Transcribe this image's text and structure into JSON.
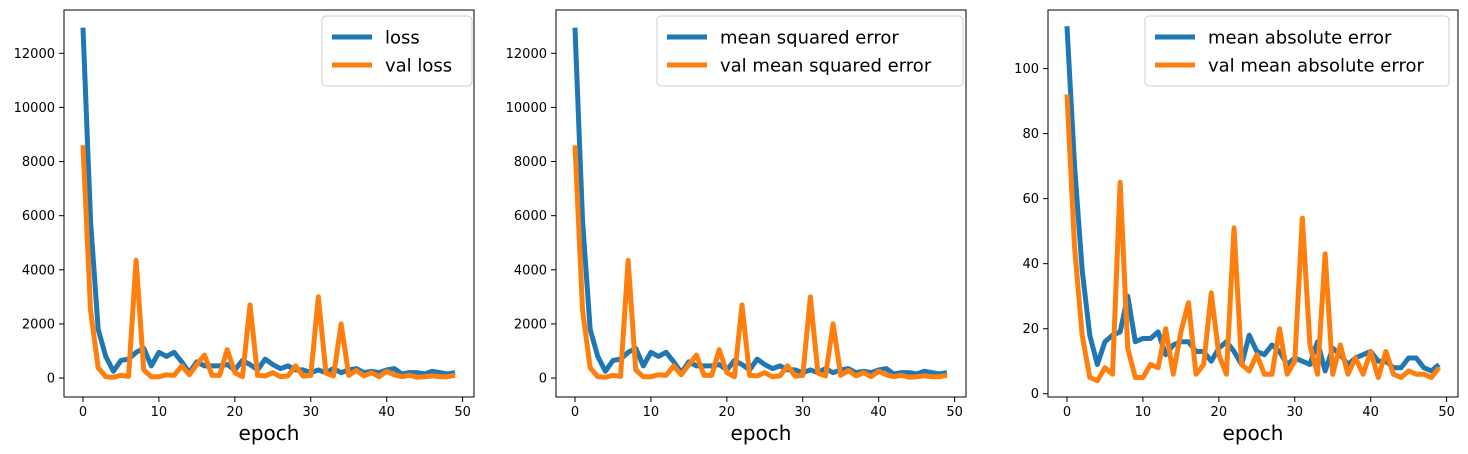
{
  "chart_data": [
    {
      "type": "line",
      "xlabel": "epoch",
      "ylabel": "",
      "xlim": [
        -2.5,
        51.5
      ],
      "ylim": [
        -700,
        13600
      ],
      "xticks": [
        0,
        10,
        20,
        30,
        40,
        50
      ],
      "yticks": [
        0,
        2000,
        4000,
        6000,
        8000,
        10000,
        12000
      ],
      "x": [
        0,
        1,
        2,
        3,
        4,
        5,
        6,
        7,
        8,
        9,
        10,
        11,
        12,
        13,
        14,
        15,
        16,
        17,
        18,
        19,
        20,
        21,
        22,
        23,
        24,
        25,
        26,
        27,
        28,
        29,
        30,
        31,
        32,
        33,
        34,
        35,
        36,
        37,
        38,
        39,
        40,
        41,
        42,
        43,
        44,
        45,
        46,
        47,
        48,
        49
      ],
      "series": [
        {
          "name": "loss",
          "color": "#1f77b4",
          "values": [
            12950,
            5800,
            1800,
            800,
            250,
            650,
            700,
            950,
            1100,
            450,
            950,
            800,
            950,
            600,
            200,
            600,
            450,
            450,
            450,
            500,
            300,
            650,
            500,
            300,
            700,
            500,
            350,
            450,
            300,
            300,
            200,
            300,
            200,
            350,
            200,
            300,
            350,
            200,
            250,
            200,
            300,
            350,
            150,
            200,
            200,
            150,
            250,
            200,
            150,
            200
          ]
        },
        {
          "name": "val loss",
          "color": "#ff7f0e",
          "values": [
            8600,
            2500,
            380,
            50,
            30,
            100,
            60,
            4350,
            300,
            50,
            50,
            120,
            100,
            450,
            120,
            500,
            850,
            100,
            100,
            1050,
            200,
            50,
            2700,
            100,
            80,
            200,
            50,
            80,
            450,
            70,
            100,
            3000,
            180,
            80,
            2000,
            100,
            280,
            80,
            200,
            50,
            250,
            120,
            50,
            100,
            30,
            50,
            80,
            50,
            50,
            100
          ]
        }
      ],
      "legend_position": "upper-right"
    },
    {
      "type": "line",
      "xlabel": "epoch",
      "ylabel": "",
      "xlim": [
        -2.5,
        51.5
      ],
      "ylim": [
        -700,
        13600
      ],
      "xticks": [
        0,
        10,
        20,
        30,
        40,
        50
      ],
      "yticks": [
        0,
        2000,
        4000,
        6000,
        8000,
        10000,
        12000
      ],
      "x": [
        0,
        1,
        2,
        3,
        4,
        5,
        6,
        7,
        8,
        9,
        10,
        11,
        12,
        13,
        14,
        15,
        16,
        17,
        18,
        19,
        20,
        21,
        22,
        23,
        24,
        25,
        26,
        27,
        28,
        29,
        30,
        31,
        32,
        33,
        34,
        35,
        36,
        37,
        38,
        39,
        40,
        41,
        42,
        43,
        44,
        45,
        46,
        47,
        48,
        49
      ],
      "series": [
        {
          "name": "mean squared error",
          "color": "#1f77b4",
          "values": [
            12950,
            5800,
            1800,
            800,
            250,
            650,
            700,
            950,
            1100,
            450,
            950,
            800,
            950,
            600,
            200,
            600,
            450,
            450,
            450,
            500,
            300,
            650,
            500,
            300,
            700,
            500,
            350,
            450,
            300,
            300,
            200,
            300,
            200,
            350,
            200,
            300,
            350,
            200,
            250,
            200,
            300,
            350,
            150,
            200,
            200,
            150,
            250,
            200,
            150,
            200
          ]
        },
        {
          "name": "val mean squared error",
          "color": "#ff7f0e",
          "values": [
            8600,
            2500,
            380,
            50,
            30,
            100,
            60,
            4350,
            300,
            50,
            50,
            120,
            100,
            450,
            120,
            500,
            850,
            100,
            100,
            1050,
            200,
            50,
            2700,
            100,
            80,
            200,
            50,
            80,
            450,
            70,
            100,
            3000,
            180,
            80,
            2000,
            100,
            280,
            80,
            200,
            50,
            250,
            120,
            50,
            100,
            30,
            50,
            80,
            50,
            50,
            100
          ]
        }
      ],
      "legend_position": "upper-right"
    },
    {
      "type": "line",
      "xlabel": "epoch",
      "ylabel": "",
      "xlim": [
        -2.5,
        51.5
      ],
      "ylim": [
        -1,
        118
      ],
      "xticks": [
        0,
        10,
        20,
        30,
        40,
        50
      ],
      "yticks": [
        0,
        20,
        40,
        60,
        80,
        100
      ],
      "x": [
        0,
        1,
        2,
        3,
        4,
        5,
        6,
        7,
        8,
        9,
        10,
        11,
        12,
        13,
        14,
        15,
        16,
        17,
        18,
        19,
        20,
        21,
        22,
        23,
        24,
        25,
        26,
        27,
        28,
        29,
        30,
        31,
        32,
        33,
        34,
        35,
        36,
        37,
        38,
        39,
        40,
        41,
        42,
        43,
        44,
        45,
        46,
        47,
        48,
        49
      ],
      "series": [
        {
          "name": "mean absolute error",
          "color": "#1f77b4",
          "values": [
            113,
            70,
            38,
            18,
            9,
            16,
            18,
            19,
            30,
            16,
            17,
            17,
            19,
            12,
            15,
            16,
            16,
            13,
            13,
            10,
            14,
            16,
            13,
            9,
            18,
            13,
            12,
            15,
            13,
            9,
            11,
            10,
            9,
            16,
            7,
            14,
            12,
            9,
            11,
            12,
            13,
            10,
            10,
            8,
            8,
            11,
            11,
            8,
            7,
            9
          ]
        },
        {
          "name": "val mean absolute error",
          "color": "#ff7f0e",
          "values": [
            92,
            45,
            18,
            5,
            4,
            8,
            6,
            65,
            14,
            5,
            5,
            9,
            8,
            20,
            6,
            19,
            28,
            6,
            9,
            31,
            12,
            6,
            51,
            9,
            7,
            12,
            6,
            6,
            20,
            6,
            10,
            54,
            15,
            6,
            43,
            6,
            15,
            6,
            11,
            6,
            13,
            5,
            13,
            6,
            5,
            7,
            6,
            6,
            5,
            8
          ]
        }
      ],
      "legend_position": "upper-right"
    }
  ]
}
